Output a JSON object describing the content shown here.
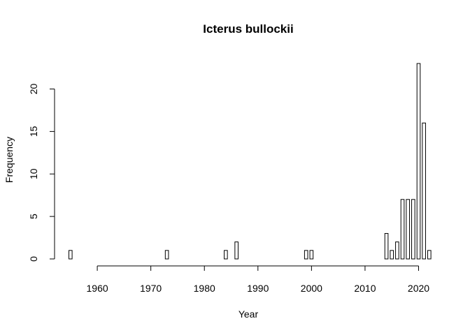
{
  "chart_data": {
    "type": "bar",
    "title": "Icterus bullockii",
    "xlabel": "Year",
    "ylabel": "Frequency",
    "x": [
      1955,
      1956,
      1957,
      1958,
      1959,
      1960,
      1961,
      1962,
      1963,
      1964,
      1965,
      1966,
      1967,
      1968,
      1969,
      1970,
      1971,
      1972,
      1973,
      1974,
      1975,
      1976,
      1977,
      1978,
      1979,
      1980,
      1981,
      1982,
      1983,
      1984,
      1985,
      1986,
      1987,
      1988,
      1989,
      1990,
      1991,
      1992,
      1993,
      1994,
      1995,
      1996,
      1997,
      1998,
      1999,
      2000,
      2001,
      2002,
      2003,
      2004,
      2005,
      2006,
      2007,
      2008,
      2009,
      2010,
      2011,
      2012,
      2013,
      2014,
      2015,
      2016,
      2017,
      2018,
      2019,
      2020,
      2021,
      2022
    ],
    "values": [
      1,
      0,
      0,
      0,
      0,
      0,
      0,
      0,
      0,
      0,
      0,
      0,
      0,
      0,
      0,
      0,
      0,
      0,
      1,
      0,
      0,
      0,
      0,
      0,
      0,
      0,
      0,
      0,
      0,
      1,
      0,
      2,
      0,
      0,
      0,
      0,
      0,
      0,
      0,
      0,
      0,
      0,
      0,
      0,
      1,
      1,
      0,
      0,
      0,
      0,
      0,
      0,
      0,
      0,
      0,
      0,
      0,
      0,
      0,
      3,
      1,
      2,
      7,
      7,
      7,
      23,
      16,
      1
    ],
    "xlim": [
      1955,
      2022
    ],
    "ylim": [
      0,
      23
    ],
    "x_ticks": [
      "1960",
      "1970",
      "1980",
      "1990",
      "2000",
      "2010",
      "2020"
    ],
    "y_ticks": [
      "0",
      "5",
      "10",
      "15",
      "20"
    ],
    "grid": false,
    "legend": "none"
  }
}
